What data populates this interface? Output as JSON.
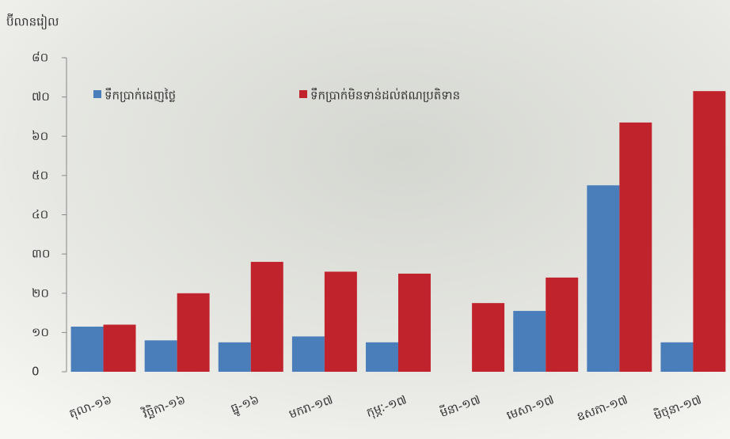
{
  "chart_data": {
    "type": "bar",
    "title": "ប៊ីលានរៀល",
    "categories": [
      "តុលា-១៦",
      "វិច្ឆិកា-១៦",
      "ធ្នូ-១៦",
      "មករា-១៧",
      "កុម្ភៈ-១៧",
      "មីនា-១៧",
      "មេសា-១៧",
      "ឧសភា-១៧",
      "មិថុនា-១៧"
    ],
    "series": [
      {
        "name": "ទឹកប្រាក់ដេញថ្លៃ",
        "color": "#4a7ebb",
        "values": [
          11.5,
          8,
          7.5,
          9,
          7.5,
          null,
          15.5,
          47.5,
          7.5
        ]
      },
      {
        "name": "ទឹកប្រាក់មិនទាន់ដល់ឥណប្រតិទាន",
        "color": "#c0232c",
        "values": [
          12,
          20,
          28,
          25.5,
          25,
          17.5,
          24,
          63.5,
          71.5
        ]
      }
    ],
    "ylim": [
      0,
      80
    ],
    "yticks": [
      {
        "value": 0,
        "label": "0"
      },
      {
        "value": 10,
        "label": "១០"
      },
      {
        "value": 20,
        "label": "២០"
      },
      {
        "value": 30,
        "label": "៣០"
      },
      {
        "value": 40,
        "label": "៤០"
      },
      {
        "value": 50,
        "label": "៥០"
      },
      {
        "value": 60,
        "label": "៦០"
      },
      {
        "value": 70,
        "label": "៧០"
      },
      {
        "value": 80,
        "label": "៨០"
      }
    ],
    "legend": "top"
  }
}
